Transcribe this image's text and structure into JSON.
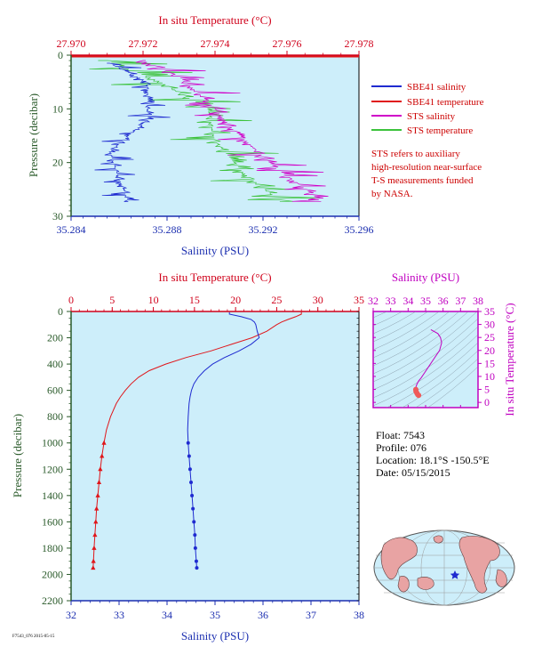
{
  "colors": {
    "salinity": "#1f2bd0",
    "temperature": "#e0161a",
    "sts_salinity": "#d000c8",
    "sts_temperature": "#3cc23c",
    "plot_bg": "#cdeefa",
    "top_axis_red": "#d0021b",
    "left_axis_green": "#2a5a2a",
    "bottom_axis_blue": "#1c2fb0",
    "ts_axis_magenta": "#c000c0"
  },
  "legend": {
    "items": [
      {
        "label": "SBE41 salinity",
        "color": "#1f2bd0"
      },
      {
        "label": "SBE41 temperature",
        "color": "#e0161a"
      },
      {
        "label": "STS salinity",
        "color": "#d000c8"
      },
      {
        "label": "STS temperature",
        "color": "#3cc23c"
      }
    ],
    "note_lines": [
      "STS refers to auxiliary",
      "high-resolution near-surface",
      "T-S measurements funded",
      "by NASA."
    ]
  },
  "info": {
    "float": "Float: 7543",
    "profile": "Profile: 076",
    "location": "Location: 18.1°S  -150.5°E",
    "date": "Date: 05/15/2015"
  },
  "footer_id": "F7543_076 2015-05-15",
  "chart_data": [
    {
      "type": "line",
      "xlabel_top": "In situ Temperature (°C)",
      "xlabel_bottom": "Salinity (PSU)",
      "ylabel": "Pressure (decibar)",
      "temp_lim": [
        27.97,
        27.978
      ],
      "temp_ticks": [
        "27.970",
        "27.972",
        "27.974",
        "27.976",
        "27.978"
      ],
      "sal_lim": [
        35.284,
        35.296
      ],
      "sal_ticks": [
        "35.284",
        "35.288",
        "35.292",
        "35.296"
      ],
      "p_lim": [
        0,
        30
      ],
      "p_ticks": [
        "0",
        "10",
        "20",
        "30"
      ],
      "series": [
        {
          "name": "SBE41 salinity",
          "x": [
            35.2856,
            35.2872,
            35.2872,
            35.2856,
            35.2864
          ],
          "y": [
            1.5,
            5,
            12,
            18,
            27.5
          ]
        },
        {
          "name": "SBE41 temperature",
          "x": [
            27.97,
            27.978
          ],
          "y": [
            0.2,
            0.2
          ]
        },
        {
          "name": "STS salinity",
          "x": [
            35.287,
            35.2885,
            35.2898,
            35.2908,
            35.2918,
            35.2925,
            35.2935,
            35.2942,
            35.2945
          ],
          "y": [
            1,
            4,
            9,
            14,
            18,
            21,
            24,
            26.5,
            27.5
          ]
        },
        {
          "name": "STS temperature",
          "x": [
            27.971,
            27.9725,
            27.9738,
            27.974,
            27.9748,
            27.9758
          ],
          "y": [
            1,
            5,
            10,
            16,
            22,
            27
          ]
        }
      ]
    },
    {
      "type": "line",
      "xlabel_top": "In situ Temperature (°C)",
      "xlabel_bottom": "Salinity (PSU)",
      "ylabel": "Pressure (decibar)",
      "temp_lim": [
        0,
        35
      ],
      "temp_ticks": [
        "0",
        "5",
        "10",
        "15",
        "20",
        "25",
        "30",
        "35"
      ],
      "sal_lim": [
        32,
        38
      ],
      "sal_ticks": [
        "32",
        "33",
        "34",
        "35",
        "36",
        "37",
        "38"
      ],
      "p_lim": [
        0,
        2200
      ],
      "p_ticks": [
        "0",
        "200",
        "400",
        "600",
        "800",
        "1000",
        "1200",
        "1400",
        "1600",
        "1800",
        "2000",
        "2200"
      ],
      "series": [
        {
          "name": "SBE41 temperature",
          "pressure": [
            5,
            20,
            40,
            60,
            80,
            100,
            150,
            200,
            250,
            300,
            350,
            400,
            450,
            500,
            550,
            600,
            650,
            700,
            800,
            900,
            1000,
            1100,
            1200,
            1300,
            1400,
            1500,
            1600,
            1700,
            1800,
            1900,
            1950
          ],
          "values": [
            28.0,
            28.0,
            27.3,
            26.4,
            25.6,
            25.0,
            23.8,
            22.0,
            19.5,
            17.0,
            14.0,
            11.5,
            9.5,
            8.2,
            7.3,
            6.6,
            6.0,
            5.5,
            4.8,
            4.3,
            4.0,
            3.75,
            3.55,
            3.4,
            3.25,
            3.1,
            3.0,
            2.9,
            2.8,
            2.72,
            2.68
          ]
        },
        {
          "name": "SBE41 salinity",
          "pressure": [
            5,
            20,
            40,
            60,
            80,
            100,
            150,
            200,
            250,
            300,
            350,
            400,
            450,
            500,
            550,
            600,
            650,
            700,
            800,
            900,
            1000,
            1100,
            1200,
            1300,
            1400,
            1500,
            1600,
            1700,
            1800,
            1900,
            1950
          ],
          "values": [
            35.3,
            35.3,
            35.55,
            35.75,
            35.82,
            35.85,
            35.88,
            35.92,
            35.75,
            35.5,
            35.2,
            34.95,
            34.78,
            34.65,
            34.56,
            34.51,
            34.48,
            34.46,
            34.44,
            34.43,
            34.44,
            34.46,
            34.48,
            34.5,
            34.52,
            34.54,
            34.56,
            34.58,
            34.59,
            34.61,
            34.62
          ]
        }
      ]
    },
    {
      "type": "scatter",
      "xlabel": "Salinity (PSU)",
      "ylabel": "In situ Temperature (°C)",
      "xlim": [
        32,
        38
      ],
      "ylim": [
        -2,
        35
      ],
      "xticks": [
        "32",
        "33",
        "34",
        "35",
        "36",
        "37",
        "38"
      ],
      "yticks": [
        "0",
        "5",
        "10",
        "15",
        "20",
        "25",
        "30",
        "35"
      ],
      "points": {
        "salinity": [
          35.3,
          35.7,
          35.85,
          35.92,
          35.8,
          35.5,
          35.2,
          34.95,
          34.75,
          34.6,
          34.5,
          34.45,
          34.44,
          34.45,
          34.5,
          34.55,
          34.6
        ],
        "temperature": [
          28.0,
          26.5,
          25.0,
          23.0,
          20.0,
          17.0,
          14.0,
          11.5,
          9.5,
          8.2,
          7.0,
          6.0,
          5.0,
          4.3,
          3.6,
          3.0,
          2.7
        ]
      }
    }
  ]
}
